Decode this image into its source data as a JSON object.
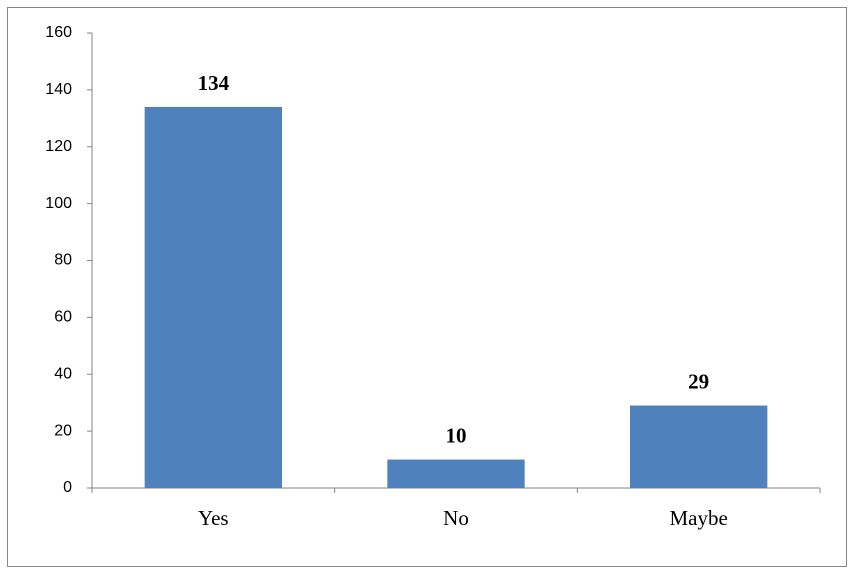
{
  "chart_data": {
    "type": "bar",
    "categories": [
      "Yes",
      "No",
      "Maybe"
    ],
    "values": [
      134,
      10,
      29
    ],
    "color": "#4f81bd",
    "ylim": [
      0,
      160
    ],
    "yticks": [
      0,
      20,
      40,
      60,
      80,
      100,
      120,
      140,
      160
    ],
    "grid": false
  }
}
